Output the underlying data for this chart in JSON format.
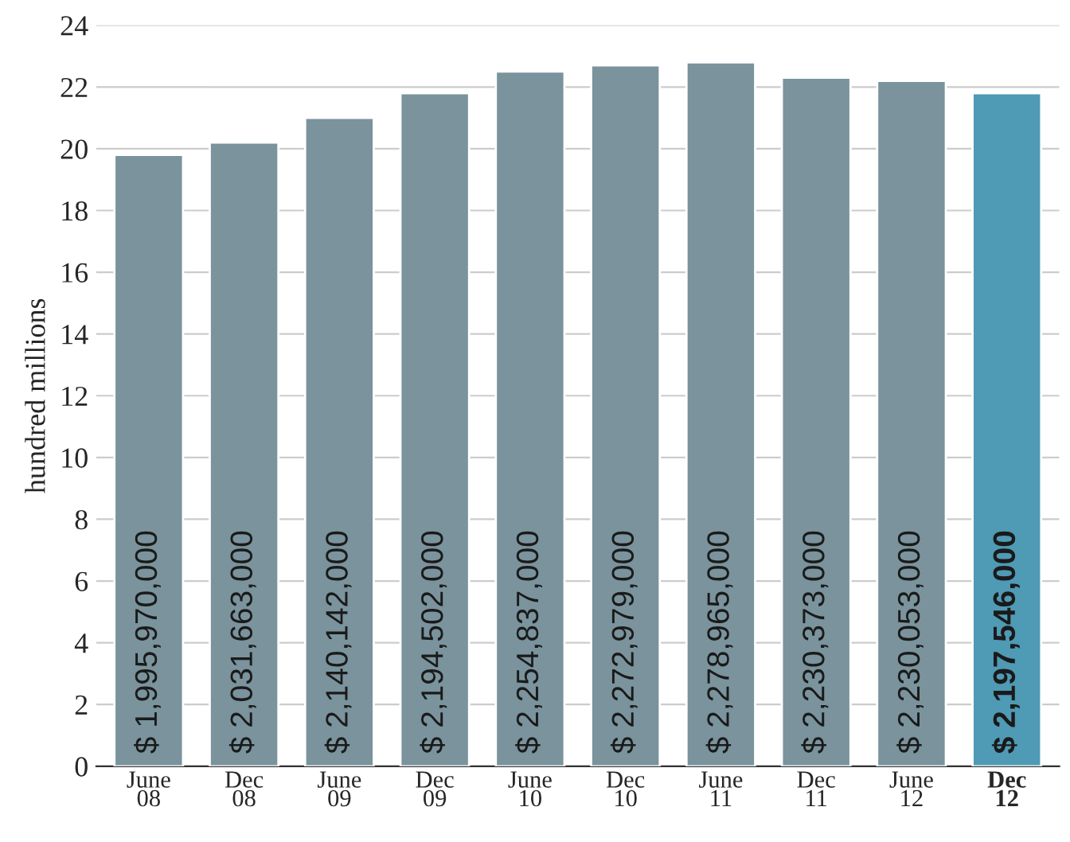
{
  "chart_data": {
    "type": "bar",
    "categories": [
      "June\n08",
      "Dec\n08",
      "June\n09",
      "Dec\n09",
      "June\n10",
      "Dec\n10",
      "June\n11",
      "Dec\n11",
      "June\n12",
      "Dec\n12"
    ],
    "values": [
      19.8,
      20.2,
      21.0,
      21.8,
      22.5,
      22.7,
      22.8,
      22.3,
      22.2,
      21.8
    ],
    "annotations": [
      "$ 1,995,970,000",
      "$ 2,031,663,000",
      "$ 2,140,142,000",
      "$ 2,194,502,000",
      "$ 2,254,837,000",
      "$ 2,272,979,000",
      "$ 2,278,965,000",
      "$ 2,230,373,000",
      "$ 2,230,053,000",
      "$ 2,197,546,000"
    ],
    "colors": [
      "#7a939c",
      "#7a939c",
      "#7a939c",
      "#7a939c",
      "#7a939c",
      "#7a939c",
      "#7a939c",
      "#7a939c",
      "#7a939c",
      "#4f9ab4"
    ],
    "ylabel": "hundred millions",
    "ylim": [
      0,
      24
    ],
    "yticks": [
      0,
      2,
      4,
      6,
      8,
      10,
      12,
      14,
      16,
      18,
      20,
      22,
      24
    ],
    "grid": "y"
  }
}
